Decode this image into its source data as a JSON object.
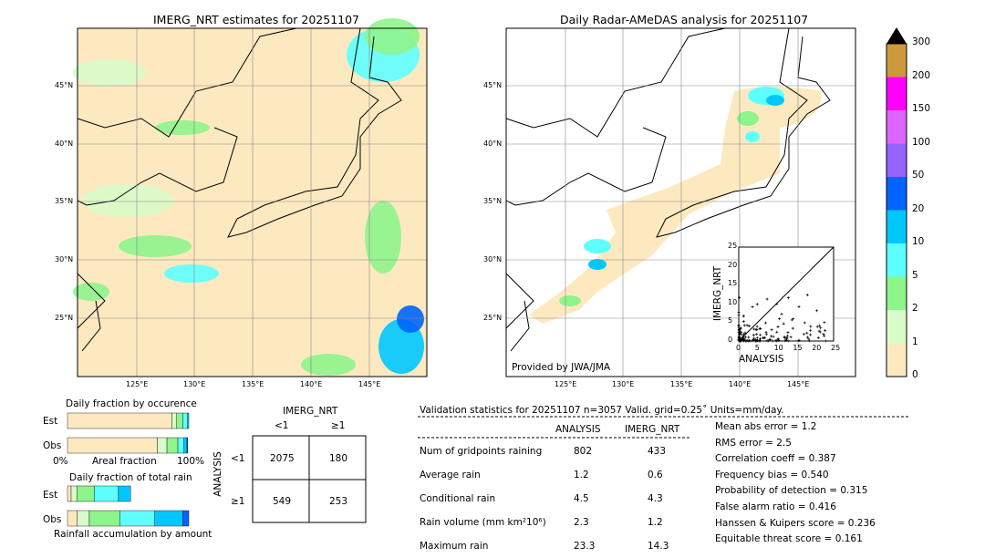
{
  "left_map": {
    "title": "IMERG_NRT estimates for 20251107"
  },
  "right_map": {
    "title": "Daily Radar-AMeDAS analysis for 20251107",
    "credit": "Provided by JWA/JMA"
  },
  "lon_ticks": [
    "125°E",
    "130°E",
    "135°E",
    "140°E",
    "145°E"
  ],
  "lat_ticks": [
    "45°N",
    "40°N",
    "35°N",
    "30°N",
    "25°N"
  ],
  "colorbar": {
    "levels": [
      "0",
      "1",
      "2",
      "5",
      "10",
      "20",
      "50",
      "100",
      "150",
      "200",
      "300"
    ],
    "colors": [
      "#fde9c0",
      "#d9fbc9",
      "#8ef48c",
      "#5effff",
      "#00c8ff",
      "#0064ff",
      "#9664ff",
      "#dc64ff",
      "#ff00ff",
      "#cc9a3c"
    ]
  },
  "chart_data": [
    {
      "type": "scatter",
      "name": "inset",
      "xlabel": "ANALYSIS",
      "ylabel": "IMERG_NRT",
      "xlim": [
        0,
        25
      ],
      "ylim": [
        0,
        25
      ],
      "ticks": [
        "0",
        "5",
        "10",
        "15",
        "20",
        "25"
      ]
    },
    {
      "type": "bar",
      "title": "Daily fraction by occurence",
      "xlabel": "Areal fraction",
      "x_ticks": [
        "0%",
        "100%"
      ],
      "series": [
        {
          "name": "Est",
          "values": [
            0.86,
            0.04,
            0.05,
            0.04,
            0.01
          ]
        },
        {
          "name": "Obs",
          "values": [
            0.74,
            0.08,
            0.09,
            0.05,
            0.025,
            0.005
          ]
        }
      ]
    },
    {
      "type": "bar",
      "title": "Daily fraction of total rain",
      "xlabel": "Rainfall accumulation by amount",
      "series": [
        {
          "name": "Est",
          "values": [
            0.03,
            0.05,
            0.14,
            0.2,
            0.1
          ]
        },
        {
          "name": "Obs",
          "values": [
            0.08,
            0.1,
            0.25,
            0.29,
            0.23,
            0.05
          ]
        }
      ]
    },
    {
      "type": "table",
      "title": "IMERG_NRT",
      "row_title": "ANALYSIS",
      "cols": [
        "<1",
        "≥1"
      ],
      "rows": [
        "<1",
        "≥1"
      ],
      "cells": [
        [
          "2075",
          "180"
        ],
        [
          "549",
          "253"
        ]
      ]
    }
  ],
  "stats": {
    "header": "Validation statistics for 20251107  n=3057 Valid. grid=0.25˚ Units=mm/day.",
    "cols": [
      "ANALYSIS",
      "IMERG_NRT"
    ],
    "rows": [
      [
        "Num of gridpoints raining",
        "802",
        "433"
      ],
      [
        "Average rain",
        "1.2",
        "0.6"
      ],
      [
        "Conditional rain",
        "4.5",
        "4.3"
      ],
      [
        "Rain volume (mm km²10⁶)",
        "2.3",
        "1.2"
      ],
      [
        "Maximum rain",
        "23.3",
        "14.3"
      ]
    ],
    "scores": [
      "Mean abs error =    1.2",
      "RMS error =    2.5",
      "Correlation coeff =  0.387",
      "Frequency bias =  0.540",
      "Probability of detection =  0.315",
      "False alarm ratio =  0.416",
      "Hanssen & Kuipers score =  0.236",
      "Equitable threat score =  0.161"
    ]
  }
}
